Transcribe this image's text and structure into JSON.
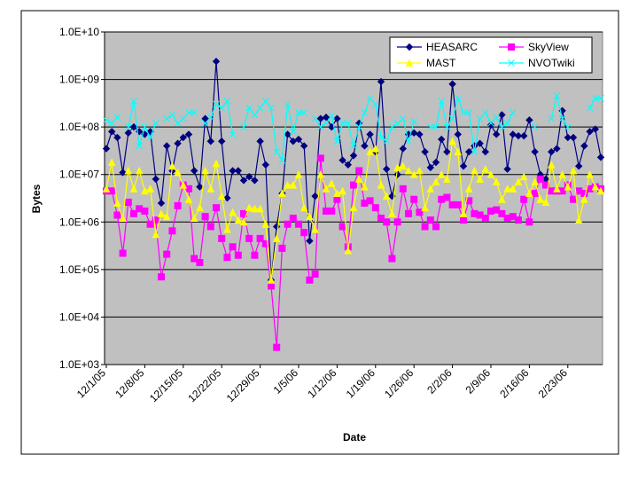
{
  "chart_data": {
    "type": "line",
    "log_scale": true,
    "grid": true,
    "legend": "upper right",
    "xlabel": "Date",
    "ylabel": "Bytes",
    "categories": [
      "12/1/05",
      null,
      null,
      null,
      null,
      null,
      null,
      "12/8/05",
      null,
      null,
      null,
      null,
      null,
      null,
      "12/15/05",
      null,
      null,
      null,
      null,
      null,
      null,
      "12/22/05",
      null,
      null,
      null,
      null,
      null,
      null,
      "12/29/05",
      null,
      null,
      null,
      null,
      null,
      null,
      "1/5/06",
      null,
      null,
      null,
      null,
      null,
      null,
      "1/12/06",
      null,
      null,
      null,
      null,
      null,
      null,
      "1/19/06",
      null,
      null,
      null,
      null,
      null,
      null,
      "1/26/06",
      null,
      null,
      null,
      null,
      null,
      null,
      "2/2/06",
      null,
      null,
      null,
      null,
      null,
      null,
      "2/9/06",
      null,
      null,
      null,
      null,
      null,
      null,
      "2/16/06",
      null,
      null,
      null,
      null,
      null,
      null,
      "2/23/06",
      null,
      null,
      null,
      null,
      null,
      null
    ],
    "ylim": [
      1000,
      10000000000
    ],
    "yticks": [
      {
        "value": 1000,
        "label": "1.0E+03"
      },
      {
        "value": 10000,
        "label": "1.0E+04"
      },
      {
        "value": 100000,
        "label": "1.0E+05"
      },
      {
        "value": 1000000,
        "label": "1.0E+06"
      },
      {
        "value": 10000000,
        "label": "1.0E+07"
      },
      {
        "value": 100000000,
        "label": "1.0E+08"
      },
      {
        "value": 1000000000,
        "label": "1.0E+09"
      },
      {
        "value": 10000000000,
        "label": "1.0E+10"
      }
    ],
    "series": [
      {
        "name": "HEASARC",
        "color": "#000080",
        "marker": "diamond",
        "values": [
          35000000.0,
          80000000.0,
          60000000.0,
          11000000.0,
          75000000.0,
          100000000.0,
          80000000.0,
          70000000.0,
          80000000.0,
          8000000.0,
          2500000.0,
          40000000.0,
          12000000.0,
          45000000.0,
          60000000.0,
          70000000.0,
          12000000.0,
          5500000.0,
          150000000.0,
          50000000.0,
          2400000000.0,
          50000000.0,
          3200000.0,
          12000000.0,
          12000000.0,
          7500000.0,
          9000000.0,
          7500000.0,
          50000000.0,
          16000000.0,
          60000.0,
          800000.0,
          4000000.0,
          70000000.0,
          50000000.0,
          55000000.0,
          40000000.0,
          400000.0,
          3500000.0,
          150000000.0,
          160000000.0,
          100000000.0,
          150000000.0,
          20000000.0,
          16000000.0,
          25000000.0,
          120000000.0,
          40000000.0,
          70000000.0,
          30000000.0,
          900000000.0,
          13000000.0,
          3500000.0,
          10000000.0,
          35000000.0,
          70000000.0,
          75000000.0,
          70000000.0,
          30000000.0,
          14000000.0,
          18000000.0,
          55000000.0,
          30000000.0,
          800000000.0,
          70000000.0,
          15000000.0,
          30000000.0,
          40000000.0,
          45000000.0,
          30000000.0,
          110000000.0,
          70000000.0,
          180000000.0,
          13000000.0,
          70000000.0,
          65000000.0,
          65000000.0,
          140000000.0,
          30000000.0,
          10000000.0,
          8000000.0,
          30000000.0,
          35000000.0,
          220000000.0,
          60000000.0,
          60000000.0,
          15000000.0,
          40000000.0,
          80000000.0,
          90000000.0,
          23000000.0
        ]
      },
      {
        "name": "SkyView",
        "color": "#ff00ff",
        "marker": "square",
        "values": [
          4500000.0,
          4500000.0,
          1400000.0,
          220000.0,
          2600000.0,
          1500000.0,
          1900000.0,
          1700000.0,
          900000.0,
          1100000.0,
          70000.0,
          210000.0,
          650000.0,
          2200000.0,
          6000000.0,
          5000000.0,
          170000.0,
          140000.0,
          1300000.0,
          800000.0,
          2000000.0,
          450000.0,
          180000.0,
          300000.0,
          200000.0,
          1500000.0,
          450000.0,
          200000.0,
          450000.0,
          350000.0,
          45000.0,
          2300.0,
          280000.0,
          900000.0,
          1200000.0,
          900000.0,
          600000.0,
          60000.0,
          80000.0,
          22000000.0,
          1700000.0,
          1700000.0,
          3000000.0,
          800000.0,
          300000.0,
          6000000.0,
          12000000.0,
          2500000.0,
          2800000.0,
          2000000.0,
          1200000.0,
          1000000.0,
          170000.0,
          1000000.0,
          5000000.0,
          1500000.0,
          3000000.0,
          1600000.0,
          800000.0,
          1100000.0,
          800000.0,
          3000000.0,
          3300000.0,
          2300000.0,
          2300000.0,
          1100000.0,
          2800000.0,
          1500000.0,
          1400000.0,
          1200000.0,
          1700000.0,
          1800000.0,
          1500000.0,
          1200000.0,
          1300000.0,
          1100000.0,
          3000000.0,
          1000000.0,
          4000000.0,
          8000000.0,
          6000000.0,
          4500000.0,
          4500000.0,
          4500000.0,
          6000000.0,
          3000000.0,
          4500000.0,
          4000000.0,
          5000000.0,
          5500000.0,
          5000000.0
        ]
      },
      {
        "name": "MAST",
        "color": "#ffff00",
        "marker": "triangle",
        "values": [
          5000000.0,
          18000000.0,
          2500000.0,
          1200000.0,
          12000000.0,
          5000000.0,
          12000000.0,
          4500000.0,
          5000000.0,
          550000.0,
          1500000.0,
          1300000.0,
          15000000.0,
          11000000.0,
          6000000.0,
          3000000.0,
          1200000.0,
          2000000.0,
          12000000.0,
          5000000.0,
          17000000.0,
          3500000.0,
          700000.0,
          1600000.0,
          1100000.0,
          1000000.0,
          2000000.0,
          1900000.0,
          1900000.0,
          900000.0,
          60000.0,
          450000.0,
          4000000.0,
          6000000.0,
          6000000.0,
          10000000.0,
          2000000.0,
          1300000.0,
          700000.0,
          10000000.0,
          5000000.0,
          6500000.0,
          4000000.0,
          4500000.0,
          250000.0,
          2000000.0,
          8000000.0,
          5500000.0,
          30000000.0,
          35000000.0,
          6000000.0,
          3500000.0,
          1500000.0,
          14000000.0,
          15000000.0,
          12000000.0,
          10000000.0,
          12000000.0,
          2000000.0,
          5000000.0,
          7000000.0,
          10000000.0,
          8000000.0,
          50000000.0,
          30000000.0,
          1500000.0,
          5000000.0,
          12000000.0,
          8000000.0,
          13000000.0,
          10000000.0,
          7000000.0,
          3000000.0,
          5000000.0,
          5000000.0,
          7000000.0,
          9000000.0,
          4000000.0,
          7000000.0,
          3000000.0,
          2600000.0,
          16000000.0,
          5000000.0,
          10000000.0,
          5500000.0,
          12000000.0,
          1100000.0,
          3000000.0,
          10000000.0,
          5500000.0,
          4500000.0
        ]
      },
      {
        "name": "NVOTwiki",
        "color": "#00ffff",
        "marker": "x",
        "values": [
          140000000.0,
          120000000.0,
          160000000.0,
          null,
          100000000.0,
          350000000.0,
          40000000.0,
          100000000.0,
          60000000.0,
          120000000.0,
          null,
          150000000.0,
          180000000.0,
          120000000.0,
          150000000.0,
          200000000.0,
          200000000.0,
          null,
          120000000.0,
          160000000.0,
          300000000.0,
          250000000.0,
          350000000.0,
          70000000.0,
          null,
          100000000.0,
          250000000.0,
          180000000.0,
          250000000.0,
          350000000.0,
          250000000.0,
          30000000.0,
          20000000.0,
          300000000.0,
          80000000.0,
          200000000.0,
          200000000.0,
          null,
          150000000.0,
          100000000.0,
          120000000.0,
          170000000.0,
          50000000.0,
          120000000.0,
          120000000.0,
          40000000.0,
          100000000.0,
          200000000.0,
          400000000.0,
          300000000.0,
          60000000.0,
          50000000.0,
          100000000.0,
          120000000.0,
          150000000.0,
          50000000.0,
          130000000.0,
          null,
          null,
          100000000.0,
          100000000.0,
          350000000.0,
          100000000.0,
          150000000.0,
          400000000.0,
          200000000.0,
          200000000.0,
          30000000.0,
          150000000.0,
          200000000.0,
          120000000.0,
          160000000.0,
          100000000.0,
          120000000.0,
          200000000.0,
          null,
          null,
          null,
          100000000.0,
          null,
          null,
          150000000.0,
          450000000.0,
          150000000.0,
          100000000.0,
          null,
          null,
          null,
          250000000.0,
          400000000.0,
          400000000.0
        ]
      }
    ]
  }
}
